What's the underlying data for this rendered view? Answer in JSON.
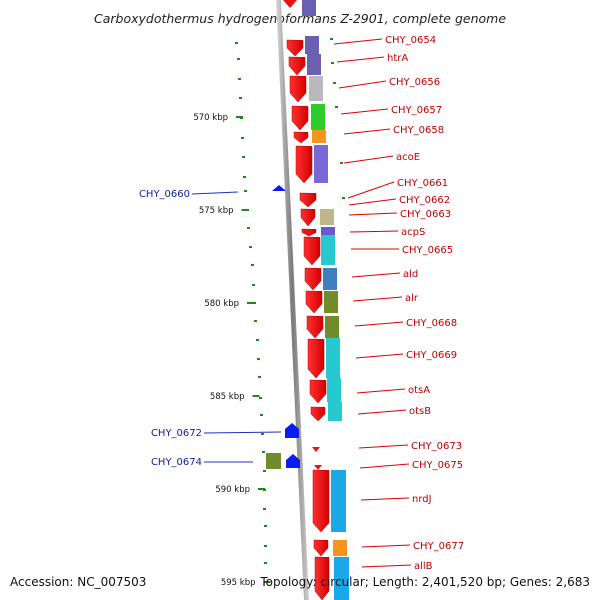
{
  "title": "Carboxydothermus hydrogenoformans Z-2901, complete genome",
  "footer": {
    "accession": "Accession: NC_007503",
    "summary": "Topology: circular; Length: 2,401,520 bp; Genes: 2,683"
  },
  "scale_labels": [
    "570 kbp",
    "575 kbp",
    "580 kbp",
    "585 kbp",
    "590 kbp",
    "595 kbp"
  ],
  "right_genes": [
    {
      "label": "CHY_0654",
      "color": "#6a5fb0"
    },
    {
      "label": "htrA",
      "color": "#b9b27c"
    },
    {
      "label": "CHY_0656",
      "color": "#b9b8bd"
    },
    {
      "label": "CHY_0657",
      "color": "#2bcc2b"
    },
    {
      "label": "CHY_0658",
      "color": "#f5951f"
    },
    {
      "label": "acoE",
      "color": "#7b68d6"
    },
    {
      "label": "CHY_0661",
      "color": "#ffffff"
    },
    {
      "label": "CHY_0662",
      "color": "#ffffff"
    },
    {
      "label": "CHY_0663",
      "color": "#bdb78a"
    },
    {
      "label": "acpS",
      "color": "#6a58cc"
    },
    {
      "label": "CHY_0665",
      "color": "#25c9cf"
    },
    {
      "label": "ald",
      "color": "#3d7fbf"
    },
    {
      "label": "alr",
      "color": "#6f8b2a"
    },
    {
      "label": "CHY_0668",
      "color": "#6f8b2a"
    },
    {
      "label": "CHY_0669",
      "color": "#25c9cf"
    },
    {
      "label": "otsA",
      "color": "#25c9cf"
    },
    {
      "label": "otsB",
      "color": "#25c9cf"
    },
    {
      "label": "CHY_0673",
      "color": "#ffffff"
    },
    {
      "label": "CHY_0675",
      "color": "#ffffff"
    },
    {
      "label": "nrdJ",
      "color": "#1aa8e6"
    },
    {
      "label": "CHY_0677",
      "color": "#f5951f"
    },
    {
      "label": "allB",
      "color": "#1aa8e6"
    }
  ],
  "left_genes": [
    {
      "label": "CHY_0660",
      "color": "#0b1cf0"
    },
    {
      "label": "CHY_0672",
      "color": "#0b1cf0"
    },
    {
      "label": "CHY_0674",
      "color": "#0b1cf0"
    }
  ],
  "colors": {
    "forward_gene": "#ee1111",
    "reverse_gene": "#0b1cf0",
    "backbone": "#8a8a8a",
    "gc_tick": "#1a8a1a",
    "cog_olive": "#6f8b2a"
  }
}
